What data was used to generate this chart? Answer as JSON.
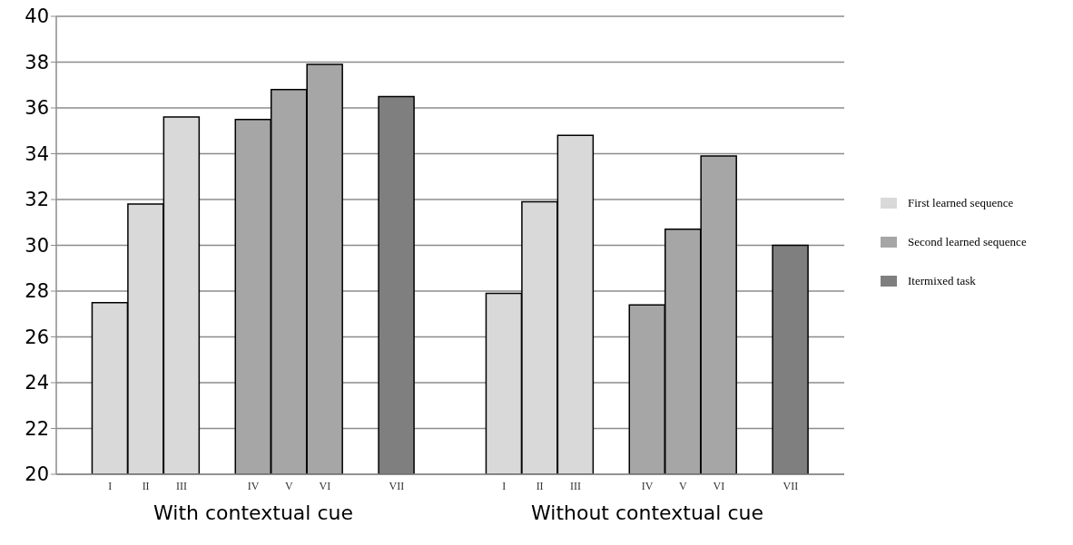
{
  "chart_data": {
    "type": "bar",
    "categories": [
      null,
      "I",
      "II",
      "III",
      null,
      "IV",
      "V",
      "VI",
      null,
      "VII",
      null,
      null,
      "I",
      "II",
      "III",
      null,
      "IV",
      "V",
      "VI",
      null,
      "VII",
      null
    ],
    "series": [
      {
        "name": "First learned sequence",
        "color": "#d9d9d9",
        "values": [
          null,
          27.5,
          31.8,
          35.6,
          null,
          null,
          null,
          null,
          null,
          null,
          null,
          null,
          27.9,
          31.9,
          34.8,
          null,
          null,
          null,
          null,
          null,
          null,
          null
        ]
      },
      {
        "name": "Second learned sequence",
        "color": "#a6a6a6",
        "values": [
          null,
          null,
          null,
          null,
          null,
          35.5,
          36.8,
          37.9,
          null,
          null,
          null,
          null,
          null,
          null,
          null,
          null,
          27.4,
          30.7,
          33.9,
          null,
          null,
          null
        ]
      },
      {
        "name": "Itermixed task",
        "color": "#7f7f7f",
        "values": [
          null,
          null,
          null,
          null,
          null,
          null,
          null,
          null,
          null,
          36.5,
          null,
          null,
          null,
          null,
          null,
          null,
          null,
          null,
          null,
          null,
          30.0,
          null
        ]
      }
    ],
    "stacked": true,
    "ylim": [
      20,
      40
    ],
    "yticks": [
      20,
      22,
      24,
      26,
      28,
      30,
      32,
      34,
      36,
      38,
      40
    ],
    "grid": "y",
    "legend": "right",
    "annotations": [
      "With contextual cue",
      "Without contextual cue"
    ]
  }
}
